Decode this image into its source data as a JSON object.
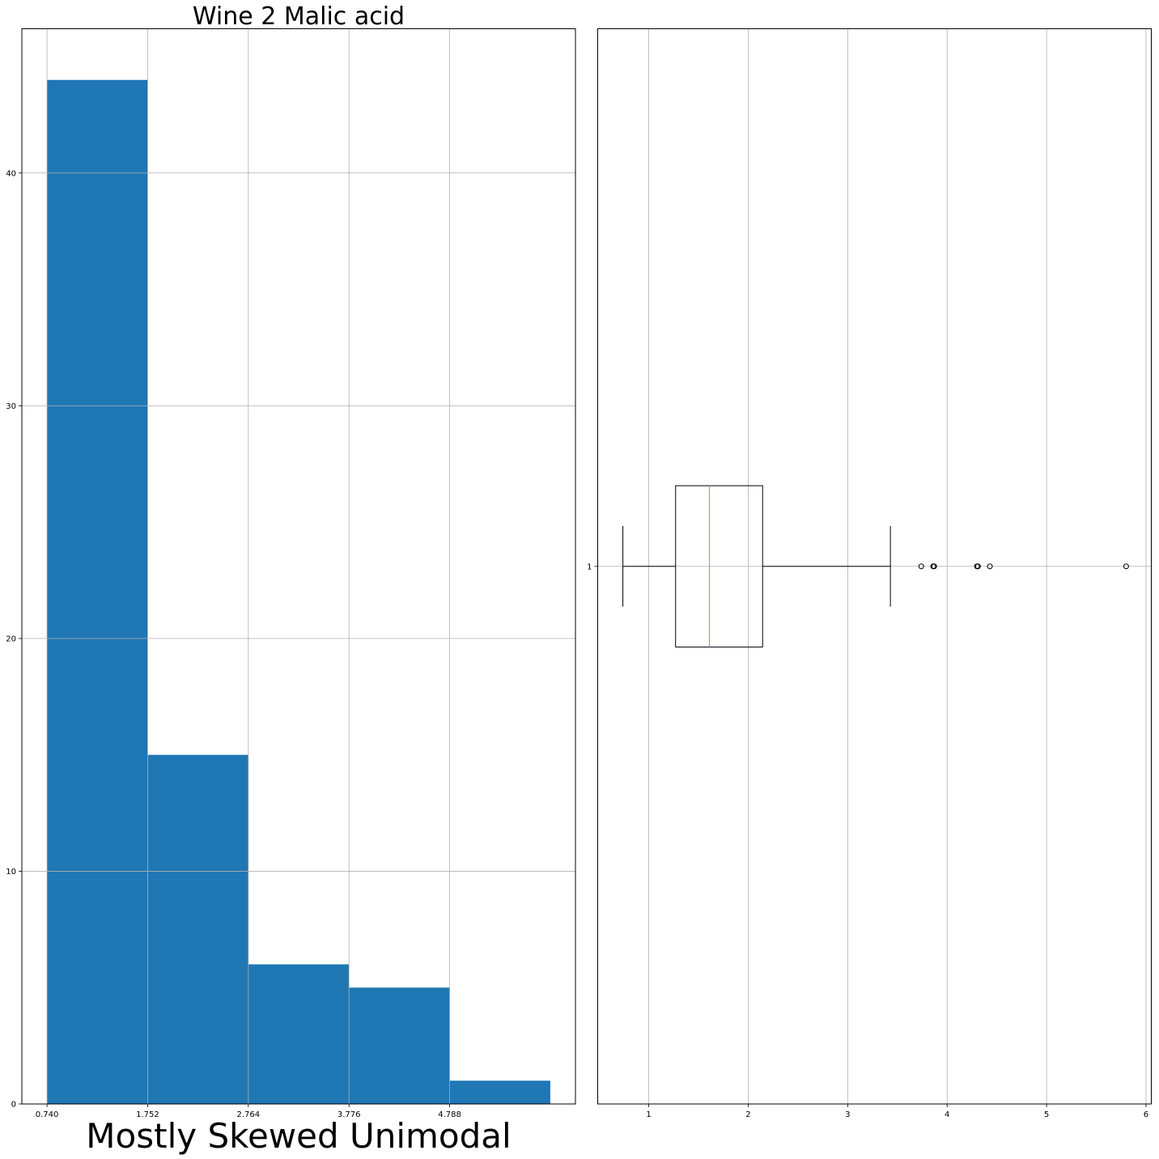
{
  "chart_data": [
    {
      "type": "bar",
      "subtype": "histogram",
      "title": "Wine 2 Malic acid",
      "xlabel": "Mostly Skewed Unimodal",
      "ylabel": "",
      "bin_edges": [
        0.74,
        1.752,
        2.764,
        3.776,
        4.788,
        5.8
      ],
      "values": [
        44,
        15,
        6,
        5,
        1
      ],
      "xticks": [
        "0.740",
        "1.752",
        "2.764",
        "3.776",
        "4.788"
      ],
      "yticks": [
        "0",
        "10",
        "20",
        "30",
        "40"
      ],
      "xlim": [
        0.487,
        6.053
      ],
      "ylim": [
        0,
        46.2
      ],
      "color": "#1f77b4",
      "grid": true
    },
    {
      "type": "boxplot",
      "orientation": "horizontal",
      "title": "",
      "xlabel": "",
      "ylabel": "",
      "category": "1",
      "whisker_low": 0.74,
      "q1": 1.27,
      "median": 1.61,
      "q3": 2.145,
      "whisker_high": 3.43,
      "outliers": [
        3.74,
        3.86,
        3.87,
        4.3,
        4.31,
        4.43,
        5.8
      ],
      "xticks": [
        "1",
        "2",
        "3",
        "4",
        "5",
        "6"
      ],
      "xlim": [
        0.487,
        6.053
      ],
      "ylim": [
        0.5,
        1.5
      ],
      "box_color": "#000000",
      "median_color": "#ff7f0e",
      "grid": true
    }
  ]
}
